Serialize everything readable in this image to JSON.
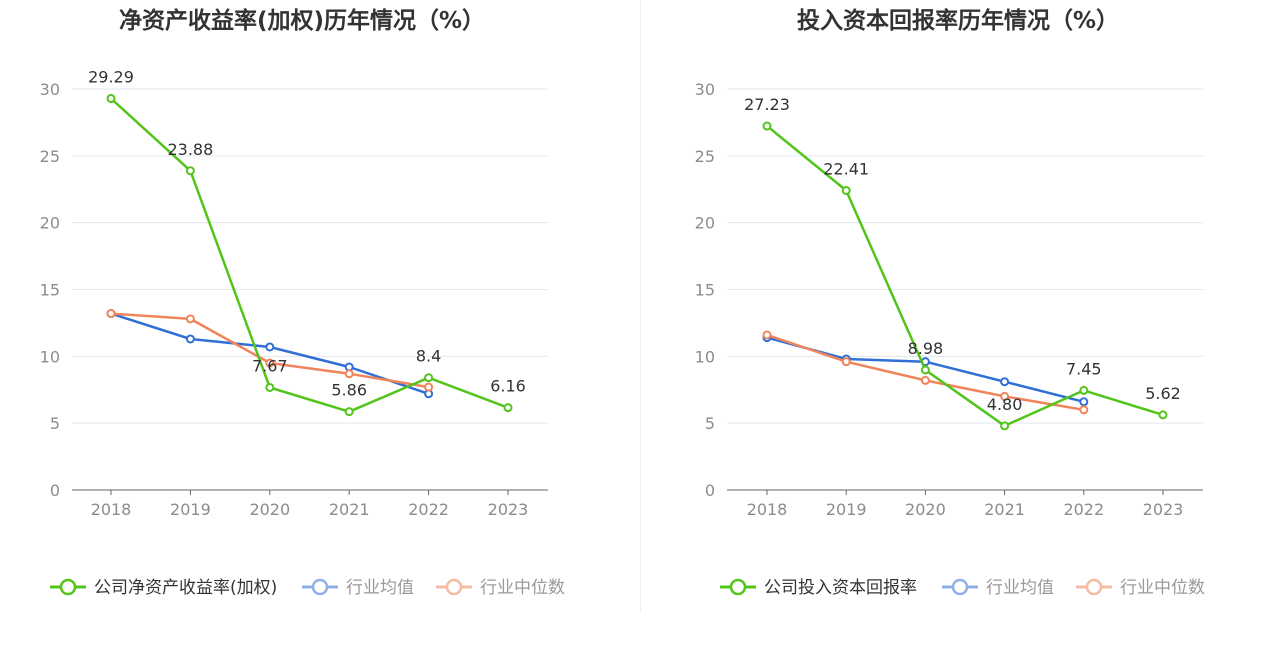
{
  "colors": {
    "company": "#52c41a",
    "average": "#2f6fd6",
    "median": "#f0845a",
    "grid": "#e3e6f0",
    "axis": "#666666"
  },
  "charts": [
    {
      "type": "line",
      "title": "净资产收益率(加权)历年情况（%）",
      "categories": [
        "2018",
        "2019",
        "2020",
        "2021",
        "2022",
        "2023"
      ],
      "yticks": [
        "0",
        "5",
        "10",
        "15",
        "20",
        "25",
        "30"
      ],
      "ylim": [
        0,
        30
      ],
      "series": [
        {
          "name": "公司净资产收益率(加权)",
          "key": "company",
          "values": [
            29.29,
            23.88,
            7.67,
            5.86,
            8.4,
            6.16
          ],
          "labels": [
            "29.29",
            "23.88",
            "7.67",
            "5.86",
            "8.4",
            "6.16"
          ]
        },
        {
          "name": "行业均值",
          "key": "average",
          "values": [
            13.2,
            11.3,
            10.7,
            9.2,
            7.2,
            null
          ]
        },
        {
          "name": "行业中位数",
          "key": "median",
          "values": [
            13.2,
            12.8,
            9.5,
            8.7,
            7.7,
            null
          ]
        }
      ]
    },
    {
      "type": "line",
      "title": "投入资本回报率历年情况（%）",
      "categories": [
        "2018",
        "2019",
        "2020",
        "2021",
        "2022",
        "2023"
      ],
      "yticks": [
        "0",
        "5",
        "10",
        "15",
        "20",
        "25",
        "30"
      ],
      "ylim": [
        0,
        30
      ],
      "series": [
        {
          "name": "公司投入资本回报率",
          "key": "company",
          "values": [
            27.23,
            22.41,
            8.98,
            4.8,
            7.45,
            5.62
          ],
          "labels": [
            "27.23",
            "22.41",
            "8.98",
            "4.80",
            "7.45",
            "5.62"
          ]
        },
        {
          "name": "行业均值",
          "key": "average",
          "values": [
            11.4,
            9.8,
            9.6,
            8.1,
            6.6,
            null
          ]
        },
        {
          "name": "行业中位数",
          "key": "median",
          "values": [
            11.6,
            9.6,
            8.2,
            7.0,
            6.0,
            null
          ]
        }
      ]
    }
  ]
}
